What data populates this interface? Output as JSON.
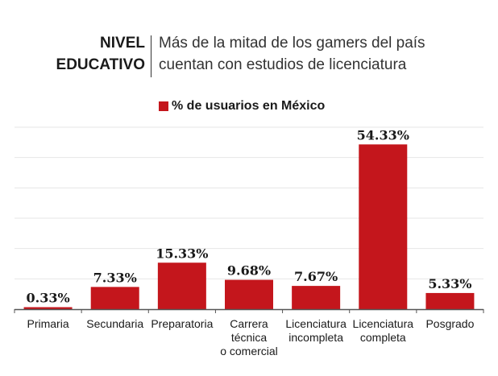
{
  "header": {
    "kicker_line1": "NIVEL",
    "kicker_line2": "EDUCATIVO",
    "headline_line1": "Más de la mitad de los gamers del país",
    "headline_line2": "cuentan con estudios de licenciatura"
  },
  "colors": {
    "bar": "#c4161c",
    "grid": "#e6e6e6",
    "axis": "#555555",
    "text": "#1a1a1a"
  },
  "chart_data": {
    "type": "bar",
    "categories": [
      [
        "Primaria"
      ],
      [
        "Secundaria"
      ],
      [
        "Preparatoria"
      ],
      [
        "Carrera",
        "técnica",
        "o comercial"
      ],
      [
        "Licenciatura",
        "incompleta"
      ],
      [
        "Licenciatura",
        "completa"
      ],
      [
        "Posgrado"
      ]
    ],
    "series": [
      {
        "name": "% de usuarios en México",
        "values": [
          0.33,
          7.33,
          15.33,
          9.68,
          7.67,
          54.33,
          5.33
        ],
        "labels": [
          "0.33%",
          "7.33%",
          "15.33%",
          "9.68%",
          "7.67%",
          "54.33%",
          "5.33%"
        ]
      }
    ],
    "ylim": [
      0,
      60
    ],
    "grid": true,
    "legend": "top"
  }
}
